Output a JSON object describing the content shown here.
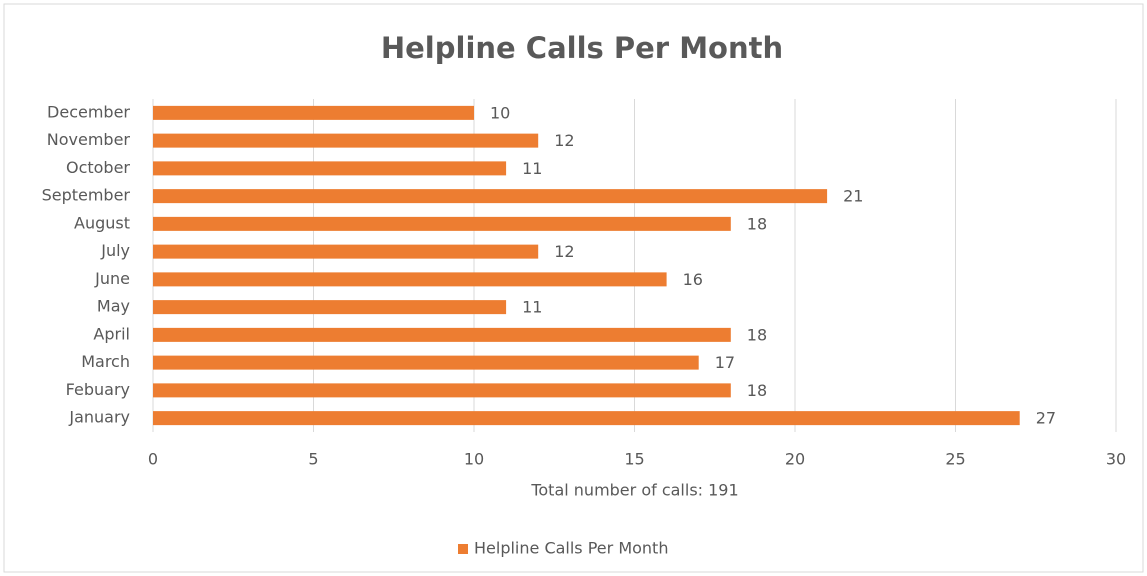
{
  "chart_data": {
    "type": "bar",
    "orientation": "horizontal",
    "title": "Helpline Calls Per Month",
    "x_label": "Total number of calls: 191",
    "categories": [
      "January",
      "Febuary",
      "March",
      "April",
      "May",
      "June",
      "July",
      "August",
      "September",
      "October",
      "November",
      "December"
    ],
    "series": [
      {
        "name": "Helpline Calls Per Month",
        "color": "#ed7d31",
        "values": [
          27,
          18,
          17,
          18,
          11,
          16,
          12,
          18,
          21,
          11,
          12,
          10
        ]
      }
    ],
    "xlim": [
      0,
      30
    ],
    "xticks": [
      0,
      5,
      10,
      15,
      20,
      25,
      30
    ],
    "grid": true,
    "data_labels": true,
    "legend": "bottom"
  }
}
